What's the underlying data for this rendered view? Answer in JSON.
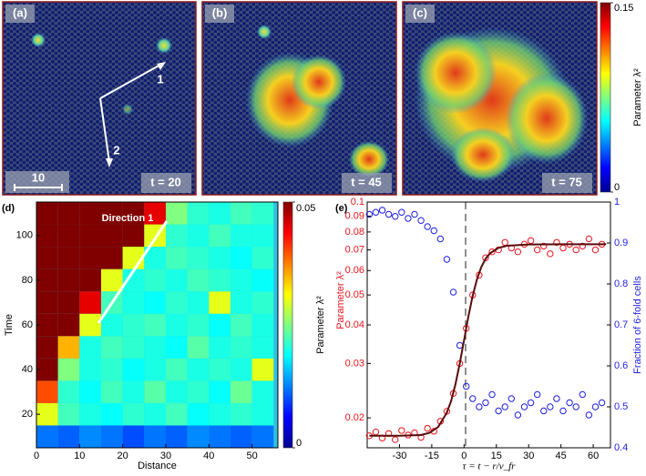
{
  "snapshots": [
    {
      "label": "(a)",
      "time_label": "t = 20"
    },
    {
      "label": "(b)",
      "time_label": "t = 45"
    },
    {
      "label": "(c)",
      "time_label": "t = 75"
    }
  ],
  "scale_bar_label": "10",
  "arrow_labels": [
    "1",
    "2"
  ],
  "colorbar": {
    "label": "Parameter λ²",
    "ticks": [
      0,
      0.15
    ],
    "lim": [
      0,
      0.15
    ]
  },
  "chart_data": [
    {
      "type": "heatmap",
      "panel_label": "(d)",
      "annotation": "Direction 1",
      "xlabel": "Distance",
      "ylabel": "Time",
      "xlim": [
        0,
        56
      ],
      "xticks": [
        0,
        10,
        20,
        30,
        40,
        50
      ],
      "ylim": [
        5,
        115
      ],
      "yticks": [
        20,
        40,
        60,
        80,
        100
      ],
      "x": [
        2.5,
        7.5,
        12.5,
        17.5,
        22.5,
        27.5,
        32.5,
        37.5,
        42.5,
        47.5,
        52.5
      ],
      "y": [
        10,
        20,
        30,
        40,
        50,
        60,
        70,
        80,
        90,
        100,
        110
      ],
      "values": [
        [
          0.012,
          0.011,
          0.013,
          0.012,
          0.01,
          0.012,
          0.011,
          0.013,
          0.012,
          0.011,
          0.012
        ],
        [
          0.03,
          0.022,
          0.02,
          0.019,
          0.021,
          0.02,
          0.022,
          0.019,
          0.02,
          0.021,
          0.02
        ],
        [
          0.04,
          0.021,
          0.019,
          0.022,
          0.02,
          0.023,
          0.02,
          0.021,
          0.019,
          0.024,
          0.02
        ],
        [
          0.05,
          0.025,
          0.02,
          0.021,
          0.019,
          0.02,
          0.022,
          0.02,
          0.021,
          0.02,
          0.03
        ],
        [
          0.05,
          0.035,
          0.02,
          0.022,
          0.021,
          0.02,
          0.019,
          0.023,
          0.02,
          0.021,
          0.02
        ],
        [
          0.05,
          0.05,
          0.03,
          0.02,
          0.021,
          0.022,
          0.02,
          0.021,
          0.019,
          0.022,
          0.02
        ],
        [
          0.05,
          0.05,
          0.045,
          0.022,
          0.02,
          0.019,
          0.021,
          0.02,
          0.03,
          0.02,
          0.021
        ],
        [
          0.05,
          0.05,
          0.05,
          0.03,
          0.02,
          0.021,
          0.02,
          0.022,
          0.021,
          0.02,
          0.019
        ],
        [
          0.05,
          0.05,
          0.05,
          0.05,
          0.03,
          0.02,
          0.022,
          0.021,
          0.02,
          0.019,
          0.021
        ],
        [
          0.05,
          0.05,
          0.05,
          0.05,
          0.05,
          0.03,
          0.021,
          0.02,
          0.022,
          0.02,
          0.02
        ],
        [
          0.05,
          0.05,
          0.05,
          0.05,
          0.05,
          0.045,
          0.025,
          0.021,
          0.02,
          0.022,
          0.021
        ]
      ],
      "clim": [
        0,
        0.05
      ],
      "cticks": [
        0,
        0.05
      ],
      "clabel": "Parameter λ²"
    },
    {
      "type": "scatter",
      "panel_label": "(e)",
      "xlabel": "τ = t − r/v_fr",
      "ylabel": "Parameter λ²",
      "y2label": "Fraction of 6-fold cells",
      "xlim": [
        -45,
        68
      ],
      "xticks": [
        -30,
        -15,
        0,
        15,
        30,
        45,
        60
      ],
      "ylim": [
        0.016,
        0.1
      ],
      "ylog": true,
      "yticks": [
        0.02,
        0.03,
        0.04,
        0.05,
        0.06,
        0.07,
        0.08,
        0.09,
        0.1
      ],
      "y2lim": [
        0.4,
        1
      ],
      "y2ticks": [
        0.4,
        0.5,
        0.6,
        0.7,
        0.8,
        0.9,
        1
      ],
      "x": [
        -44,
        -41,
        -38,
        -35,
        -32,
        -29,
        -26,
        -23,
        -20,
        -17,
        -14,
        -11,
        -8,
        -5,
        -2,
        1,
        4,
        7,
        10,
        13,
        16,
        19,
        22,
        25,
        28,
        31,
        34,
        37,
        40,
        43,
        46,
        49,
        52,
        55,
        58,
        61,
        64
      ],
      "series": [
        {
          "color": "#e8141c",
          "axis": "y",
          "values": [
            0.0175,
            0.018,
            0.0172,
            0.0178,
            0.017,
            0.0182,
            0.0176,
            0.0179,
            0.0173,
            0.0185,
            0.0181,
            0.0195,
            0.021,
            0.024,
            0.03,
            0.039,
            0.05,
            0.058,
            0.066,
            0.069,
            0.07,
            0.074,
            0.071,
            0.069,
            0.073,
            0.075,
            0.07,
            0.072,
            0.068,
            0.074,
            0.071,
            0.073,
            0.07,
            0.072,
            0.076,
            0.07,
            0.073
          ]
        },
        {
          "color": "#1f1fe0",
          "axis": "y2",
          "values": [
            0.97,
            0.975,
            0.98,
            0.97,
            0.965,
            0.975,
            0.96,
            0.97,
            0.955,
            0.94,
            0.93,
            0.91,
            0.86,
            0.78,
            0.65,
            0.55,
            0.52,
            0.5,
            0.51,
            0.53,
            0.49,
            0.5,
            0.52,
            0.48,
            0.5,
            0.51,
            0.53,
            0.49,
            0.5,
            0.52,
            0.49,
            0.51,
            0.5,
            0.53,
            0.48,
            0.5,
            0.51
          ]
        },
        {
          "color": "#5a0a0a",
          "axis": "y",
          "line": true,
          "x": [
            -44,
            -30,
            -20,
            -16,
            -12,
            -8,
            -6,
            -4,
            -2,
            0,
            2,
            4,
            6,
            8,
            10,
            12,
            16,
            20,
            30,
            45,
            66
          ],
          "values": [
            0.0175,
            0.0175,
            0.0176,
            0.0179,
            0.0187,
            0.0208,
            0.0227,
            0.0257,
            0.03,
            0.0357,
            0.0426,
            0.0497,
            0.0562,
            0.0616,
            0.0655,
            0.0682,
            0.0711,
            0.0722,
            0.0729,
            0.073,
            0.073
          ]
        }
      ]
    }
  ]
}
